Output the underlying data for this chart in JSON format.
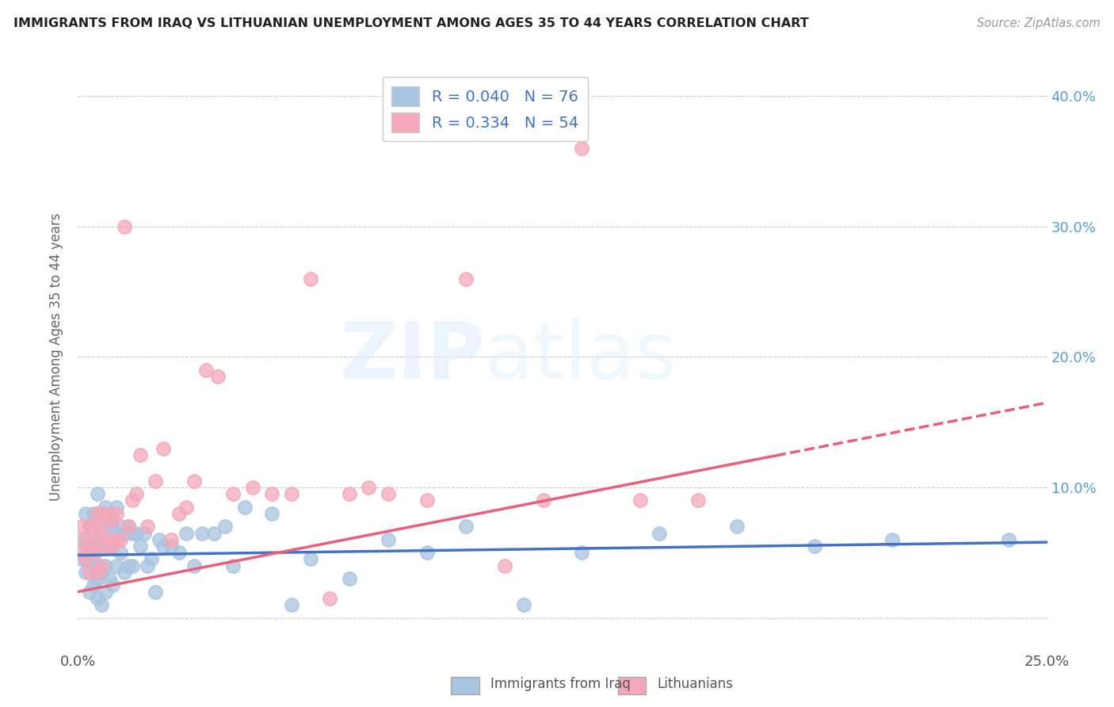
{
  "title": "IMMIGRANTS FROM IRAQ VS LITHUANIAN UNEMPLOYMENT AMONG AGES 35 TO 44 YEARS CORRELATION CHART",
  "source": "Source: ZipAtlas.com",
  "ylabel": "Unemployment Among Ages 35 to 44 years",
  "xlim": [
    0.0,
    0.25
  ],
  "ylim": [
    -0.025,
    0.425
  ],
  "x_ticks": [
    0.0,
    0.05,
    0.1,
    0.15,
    0.2,
    0.25
  ],
  "y_ticks": [
    0.0,
    0.1,
    0.2,
    0.3,
    0.4
  ],
  "iraq_R": 0.04,
  "iraq_N": 76,
  "lith_R": 0.334,
  "lith_N": 54,
  "iraq_scatter_color": "#a8c4e0",
  "iraq_line_color": "#4472c4",
  "lith_scatter_color": "#f4a7b9",
  "lith_line_color": "#e8607a",
  "watermark_zip": "ZIP",
  "watermark_atlas": "atlas",
  "legend_label_iraq": "Immigrants from Iraq",
  "legend_label_lith": "Lithuanians",
  "iraq_line_start_y": 0.048,
  "iraq_line_end_y": 0.058,
  "lith_line_start_y": 0.02,
  "lith_line_end_y": 0.165,
  "iraq_points_x": [
    0.001,
    0.001,
    0.002,
    0.002,
    0.002,
    0.003,
    0.003,
    0.003,
    0.003,
    0.004,
    0.004,
    0.004,
    0.004,
    0.005,
    0.005,
    0.005,
    0.005,
    0.005,
    0.005,
    0.006,
    0.006,
    0.006,
    0.006,
    0.007,
    0.007,
    0.007,
    0.007,
    0.008,
    0.008,
    0.008,
    0.008,
    0.009,
    0.009,
    0.009,
    0.01,
    0.01,
    0.01,
    0.011,
    0.011,
    0.012,
    0.012,
    0.013,
    0.013,
    0.014,
    0.014,
    0.015,
    0.016,
    0.017,
    0.018,
    0.019,
    0.02,
    0.021,
    0.022,
    0.024,
    0.026,
    0.028,
    0.03,
    0.032,
    0.035,
    0.038,
    0.04,
    0.043,
    0.05,
    0.055,
    0.06,
    0.07,
    0.08,
    0.09,
    0.1,
    0.115,
    0.13,
    0.15,
    0.17,
    0.19,
    0.21,
    0.24
  ],
  "iraq_points_y": [
    0.045,
    0.06,
    0.055,
    0.08,
    0.035,
    0.07,
    0.05,
    0.045,
    0.02,
    0.065,
    0.08,
    0.045,
    0.025,
    0.08,
    0.095,
    0.055,
    0.04,
    0.03,
    0.015,
    0.075,
    0.055,
    0.035,
    0.01,
    0.085,
    0.065,
    0.04,
    0.02,
    0.08,
    0.07,
    0.055,
    0.03,
    0.075,
    0.055,
    0.025,
    0.085,
    0.065,
    0.04,
    0.07,
    0.05,
    0.065,
    0.035,
    0.07,
    0.04,
    0.065,
    0.04,
    0.065,
    0.055,
    0.065,
    0.04,
    0.045,
    0.02,
    0.06,
    0.055,
    0.055,
    0.05,
    0.065,
    0.04,
    0.065,
    0.065,
    0.07,
    0.04,
    0.085,
    0.08,
    0.01,
    0.045,
    0.03,
    0.06,
    0.05,
    0.07,
    0.01,
    0.05,
    0.065,
    0.07,
    0.055,
    0.06,
    0.06
  ],
  "lith_points_x": [
    0.001,
    0.001,
    0.002,
    0.002,
    0.003,
    0.003,
    0.003,
    0.004,
    0.004,
    0.005,
    0.005,
    0.005,
    0.006,
    0.006,
    0.006,
    0.007,
    0.007,
    0.008,
    0.008,
    0.009,
    0.009,
    0.01,
    0.01,
    0.011,
    0.012,
    0.013,
    0.014,
    0.015,
    0.016,
    0.018,
    0.02,
    0.022,
    0.024,
    0.026,
    0.028,
    0.03,
    0.033,
    0.036,
    0.04,
    0.045,
    0.05,
    0.055,
    0.06,
    0.065,
    0.07,
    0.075,
    0.08,
    0.09,
    0.1,
    0.11,
    0.12,
    0.13,
    0.145,
    0.16
  ],
  "lith_points_y": [
    0.05,
    0.07,
    0.06,
    0.045,
    0.07,
    0.055,
    0.035,
    0.07,
    0.05,
    0.08,
    0.06,
    0.035,
    0.08,
    0.065,
    0.04,
    0.075,
    0.055,
    0.08,
    0.06,
    0.075,
    0.055,
    0.08,
    0.06,
    0.06,
    0.3,
    0.07,
    0.09,
    0.095,
    0.125,
    0.07,
    0.105,
    0.13,
    0.06,
    0.08,
    0.085,
    0.105,
    0.19,
    0.185,
    0.095,
    0.1,
    0.095,
    0.095,
    0.26,
    0.015,
    0.095,
    0.1,
    0.095,
    0.09,
    0.26,
    0.04,
    0.09,
    0.36,
    0.09,
    0.09
  ]
}
